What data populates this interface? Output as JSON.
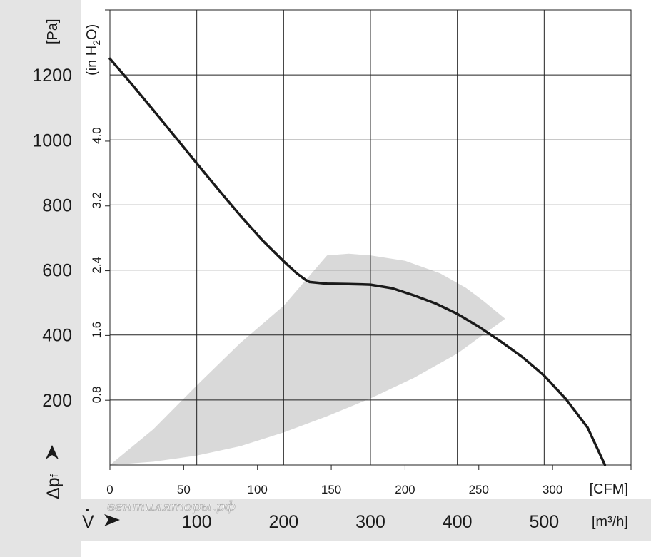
{
  "chart_data": {
    "type": "line",
    "y_unit_primary": "[Pa]",
    "y_unit_secondary": "(in H2O)",
    "y_axis_symbol": "Δpf",
    "x_unit_primary": "[CFM]",
    "x_unit_secondary": "[m³/h]",
    "x_axis_symbol": "V̇",
    "x_ticks_cfm": [
      "0",
      "50",
      "100",
      "150",
      "200",
      "250",
      "300"
    ],
    "x_ticks_m3h": [
      "100",
      "200",
      "300",
      "400",
      "500"
    ],
    "y_ticks_pa": [
      "200",
      "400",
      "600",
      "800",
      "1000",
      "1200"
    ],
    "y_ticks_inh2o": [
      "0.8",
      "1.6",
      "2.4",
      "3.2",
      "4.0"
    ],
    "xlim_m3h": [
      0,
      600
    ],
    "ylim_pa": [
      0,
      1400
    ],
    "grid": true,
    "series": [
      {
        "x": [
          0,
          25,
          50,
          75,
          100,
          125,
          150,
          175,
          200,
          215,
          225,
          230,
          250,
          275,
          300,
          325,
          350,
          375,
          400,
          425,
          450,
          475,
          500,
          525,
          550,
          570
        ],
        "y": [
          1250,
          1172,
          1092,
          1010,
          928,
          847,
          768,
          693,
          627,
          590,
          570,
          563,
          558,
          557,
          555,
          544,
          522,
          497,
          465,
          425,
          380,
          332,
          275,
          203,
          115,
          0
        ]
      }
    ],
    "operating_range": {
      "upper_x": [
        0,
        50,
        100,
        150,
        200,
        250,
        275,
        300,
        340,
        380,
        410,
        430,
        455
      ],
      "upper_y": [
        0,
        110,
        245,
        375,
        490,
        645,
        650,
        645,
        628,
        590,
        545,
        505,
        450
      ],
      "lower_x": [
        455,
        400,
        350,
        300,
        250,
        200,
        150,
        100,
        50,
        0
      ],
      "lower_y": [
        450,
        343,
        268,
        205,
        150,
        100,
        58,
        29,
        10,
        0
      ]
    },
    "colors": {
      "curve": "#1a1a1a",
      "operating_range": "#d9d9d9",
      "left_band": "#e4e4e4",
      "bottom_band": "#e4e4e4",
      "grid": "#222222"
    }
  },
  "watermark": "вентиляторы.рф"
}
